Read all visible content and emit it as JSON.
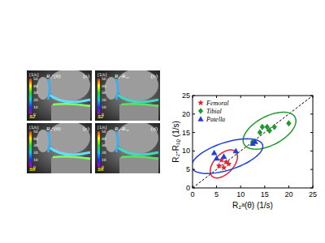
{
  "chart_data": {
    "type": "scatter",
    "x_label": "R₂ᵃ(θ)  (1/s)",
    "y_label": "R₂-R₁ᵨ (1/s)",
    "xlim": [
      0,
      25
    ],
    "ylim": [
      0,
      25
    ],
    "xticks": [
      0,
      5,
      10,
      15,
      20,
      25
    ],
    "yticks": [
      0,
      5,
      10,
      15,
      20,
      25
    ],
    "legend": "upper left",
    "series": [
      {
        "name": "Femoral",
        "color": "#e8202a",
        "marker": "star",
        "x": [
          5.5,
          6,
          6.5,
          7,
          7.5
        ],
        "values": [
          6,
          7.5,
          5.5,
          7,
          6.5
        ],
        "ellipse": {
          "cx": 6.5,
          "cy": 6.5,
          "rx": 4.2,
          "ry": 2.2,
          "angle": 60
        }
      },
      {
        "name": "Tibial",
        "color": "#1e9a2e",
        "marker": "diamond",
        "x": [
          12.5,
          14,
          14.5,
          15.5,
          16,
          17,
          20
        ],
        "values": [
          12.5,
          15,
          16.5,
          16.5,
          15.5,
          16.5,
          17.5
        ],
        "ellipse": {
          "cx": 16,
          "cy": 15.5,
          "rx": 6.5,
          "ry": 3.6,
          "angle": 40
        }
      },
      {
        "name": "Patella",
        "color": "#1f3fd8",
        "marker": "triangle",
        "x": [
          4.5,
          5,
          6.5,
          9,
          12.5,
          13
        ],
        "values": [
          9.5,
          8,
          8.5,
          10,
          12,
          12.5
        ],
        "ellipse": {
          "cx": 7.2,
          "cy": 8.6,
          "rx": 8,
          "ry": 3.6,
          "angle": 25
        }
      }
    ]
  },
  "images": {
    "panels": [
      {
        "label": "(a)",
        "title": "R₂ᵃ(θ)",
        "slice": "S2"
      },
      {
        "label": "(b)",
        "title": "R₂-R₁ᵨ",
        "slice": "S2"
      },
      {
        "label": "(c)",
        "title": "R₂ᵃ(θ)",
        "slice": "S6"
      },
      {
        "label": "(d)",
        "title": "R₂-R₁ᵨ",
        "slice": "S6"
      }
    ],
    "colorbar": {
      "unit": "[1/s]",
      "range": [
        0,
        50
      ],
      "ticks": [
        0,
        10,
        20,
        30,
        40,
        50
      ]
    }
  }
}
